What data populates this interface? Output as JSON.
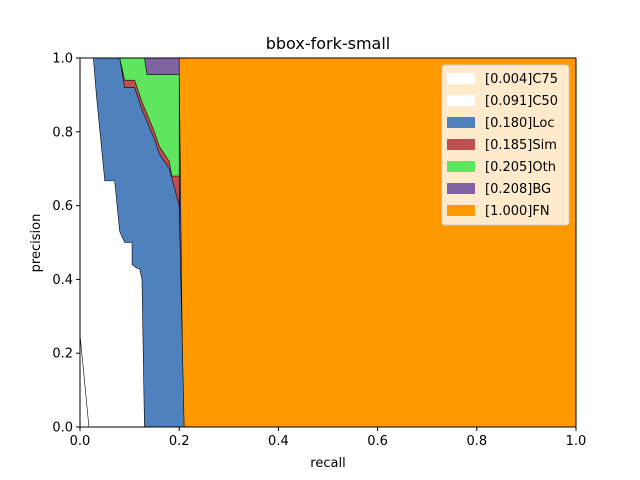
{
  "chart_data": {
    "type": "area",
    "title": "bbox-fork-small",
    "xlabel": "recall",
    "ylabel": "precision",
    "xlim": [
      0,
      1
    ],
    "ylim": [
      0,
      1
    ],
    "xticks": [
      "0.0",
      "0.2",
      "0.4",
      "0.6",
      "0.8",
      "1.0"
    ],
    "yticks": [
      "0.0",
      "0.2",
      "0.4",
      "0.6",
      "0.8",
      "1.0"
    ],
    "legend_position": "top-right",
    "series": [
      {
        "name": "FN",
        "label": "[1.000]FN",
        "color": "#ff9900",
        "points": [
          [
            0,
            1
          ],
          [
            1,
            1
          ]
        ]
      },
      {
        "name": "BG",
        "label": "[0.208]BG",
        "color": "#8064a2",
        "points": [
          [
            0,
            1
          ],
          [
            0.2,
            1
          ],
          [
            0.2,
            0.97
          ],
          [
            0.208,
            0
          ]
        ]
      },
      {
        "name": "Oth",
        "label": "[0.205]Oth",
        "color": "#5ee65e",
        "points": [
          [
            0,
            1
          ],
          [
            0.13,
            1
          ],
          [
            0.135,
            0.955
          ],
          [
            0.2,
            0.955
          ],
          [
            0.2,
            0.68
          ],
          [
            0.205,
            0
          ]
        ]
      },
      {
        "name": "Sim",
        "label": "[0.185]Sim",
        "color": "#c0504d",
        "points": [
          [
            0,
            1
          ],
          [
            0.08,
            1
          ],
          [
            0.09,
            0.94
          ],
          [
            0.11,
            0.94
          ],
          [
            0.125,
            0.88
          ],
          [
            0.15,
            0.8
          ],
          [
            0.16,
            0.76
          ],
          [
            0.18,
            0.72
          ],
          [
            0.185,
            0.68
          ],
          [
            0.2,
            0.68
          ],
          [
            0.2,
            0.6
          ],
          [
            0.205,
            0
          ]
        ]
      },
      {
        "name": "Loc",
        "label": "[0.180]Loc",
        "color": "#4f81bd",
        "points": [
          [
            0,
            1
          ],
          [
            0.08,
            1
          ],
          [
            0.09,
            0.92
          ],
          [
            0.11,
            0.92
          ],
          [
            0.125,
            0.86
          ],
          [
            0.15,
            0.78
          ],
          [
            0.16,
            0.74
          ],
          [
            0.18,
            0.7
          ],
          [
            0.2,
            0.6
          ],
          [
            0.21,
            0
          ]
        ]
      },
      {
        "name": "C50",
        "label": "[0.091]C50",
        "color": "#ffffff",
        "points": [
          [
            0,
            1
          ],
          [
            0.027,
            1
          ],
          [
            0.033,
            0.9
          ],
          [
            0.05,
            0.667
          ],
          [
            0.07,
            0.667
          ],
          [
            0.08,
            0.53
          ],
          [
            0.09,
            0.5
          ],
          [
            0.105,
            0.5
          ],
          [
            0.105,
            0.44
          ],
          [
            0.115,
            0.43
          ],
          [
            0.12,
            0.43
          ],
          [
            0.125,
            0.4
          ],
          [
            0.13,
            0
          ]
        ]
      },
      {
        "name": "C75",
        "label": "[0.004]C75",
        "color": "#ffffff",
        "points": [
          [
            0,
            0.25
          ],
          [
            0.008,
            0.14
          ],
          [
            0.018,
            0
          ]
        ]
      }
    ]
  }
}
